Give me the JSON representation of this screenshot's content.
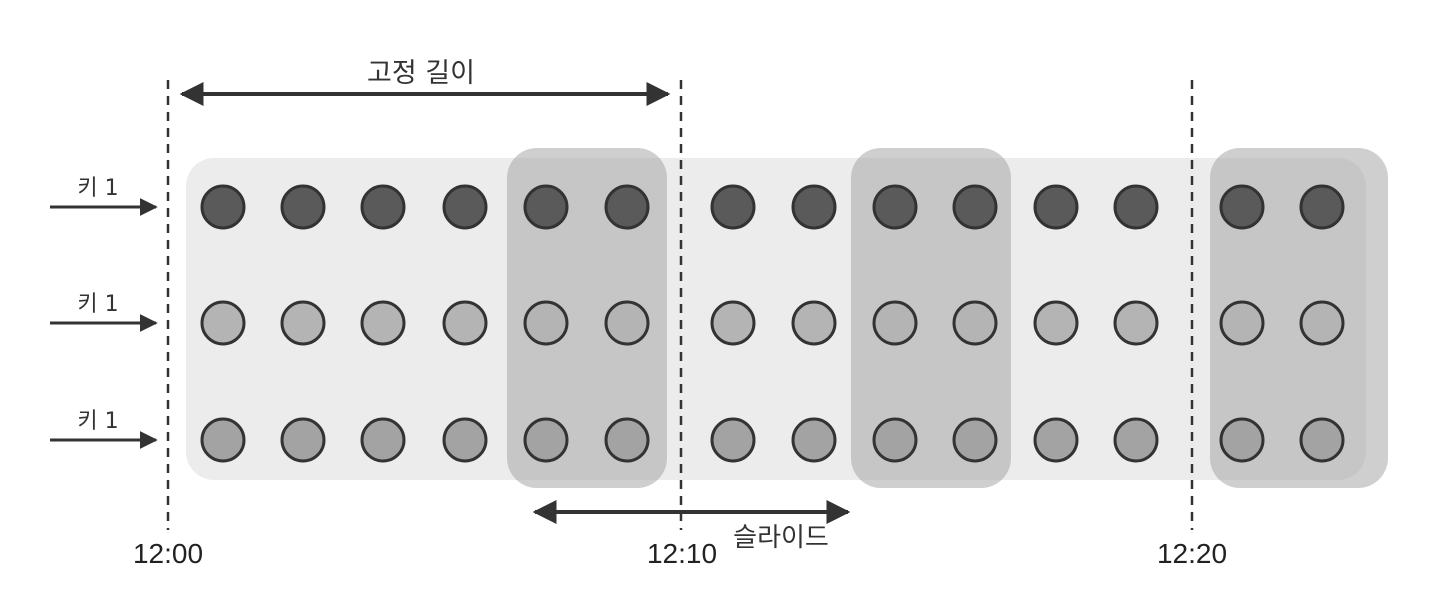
{
  "fixed_length_label": "고정 길이",
  "slide_label": "슬라이드",
  "keys": [
    {
      "label": "키 1",
      "dot_color": "#5a5a5a"
    },
    {
      "label": "키 1",
      "dot_color": "#b4b4b4"
    },
    {
      "label": "키 1",
      "dot_color": "#a3a3a3"
    }
  ],
  "time_markers": [
    "12:00",
    "12:10",
    "12:20"
  ],
  "events_per_key": 14,
  "colors": {
    "background_band": "#ececec",
    "window_overlay": "#a8a8a8",
    "dot_stroke": "#333333",
    "arrow": "#333333"
  }
}
